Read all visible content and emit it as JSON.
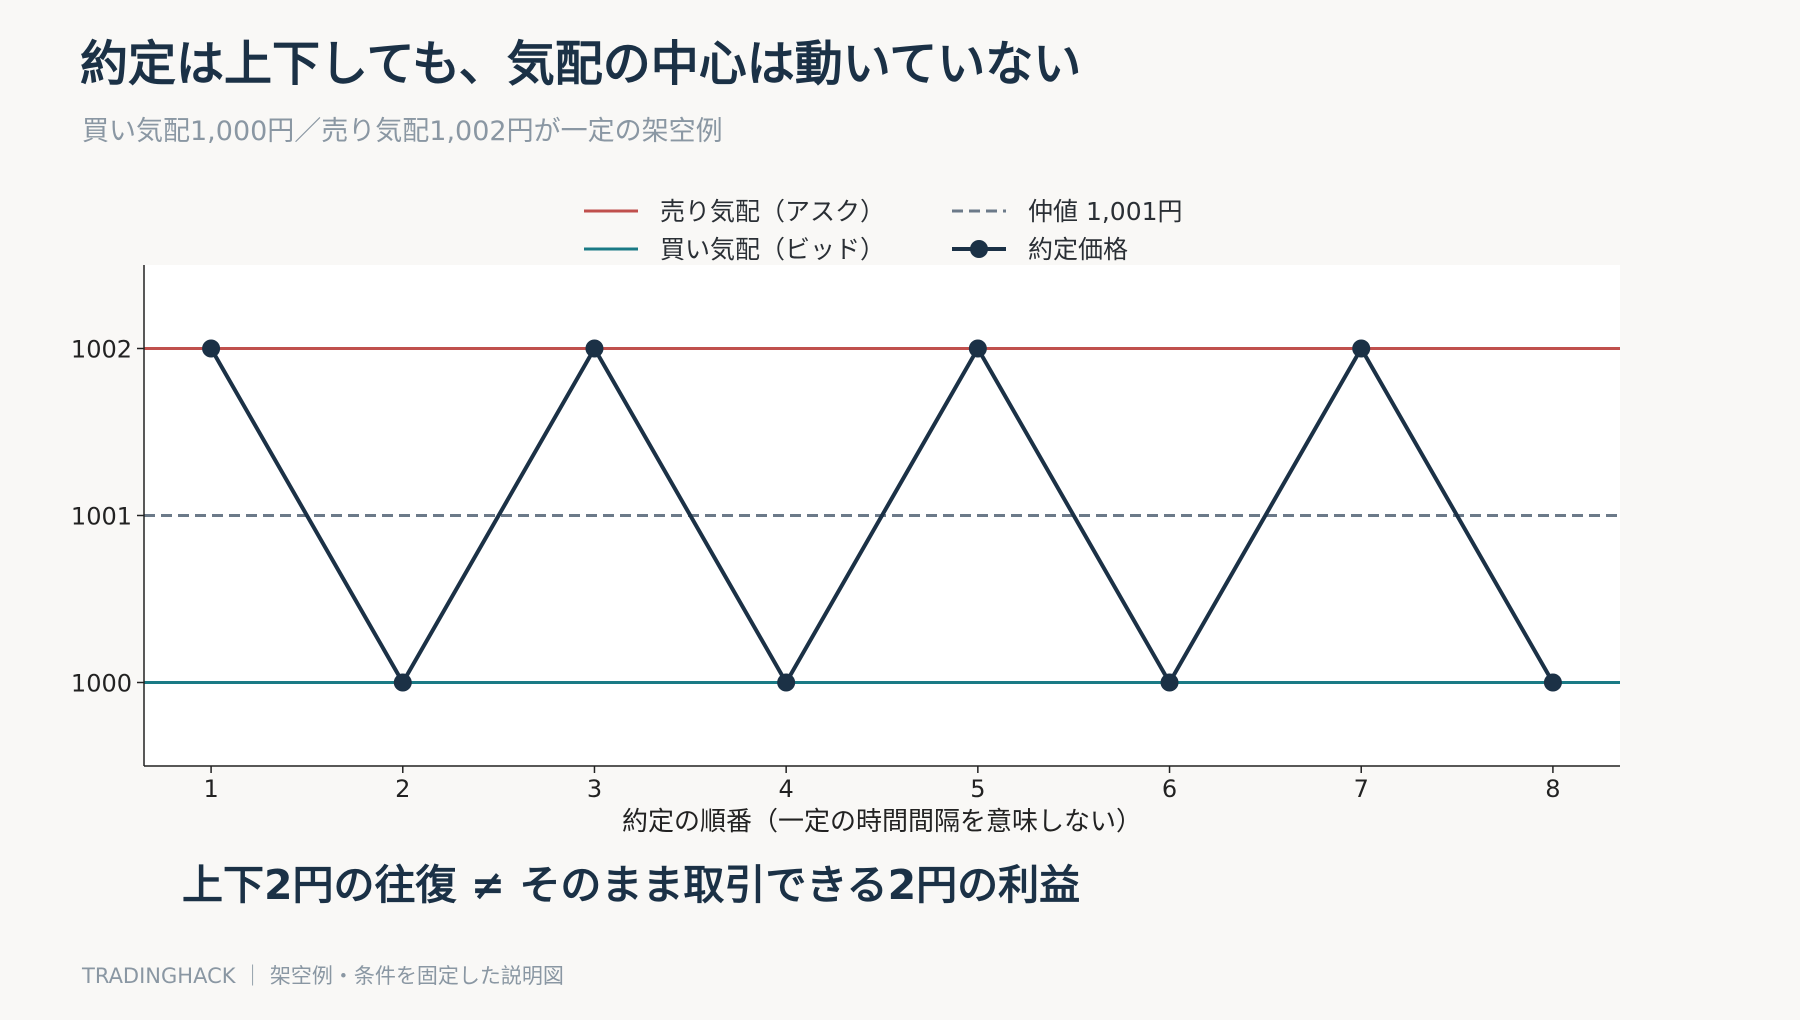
{
  "title": "約定は上下しても、気配の中心は動いていない",
  "subtitle": "買い気配1,000円／売り気配1,002円が一定の架空例",
  "callout": "上下2円の往復 ≠ そのまま取引できる2円の利益",
  "footer": "TRADINGHACK ｜ 架空例・条件を固定した説明図",
  "legend": {
    "ask": "売り気配（アスク）",
    "bid": "買い気配（ビッド）",
    "mid": "仲値 1,001円",
    "trade": "約定価格"
  },
  "colors": {
    "ask": "#c0504d",
    "bid": "#1a7a85",
    "mid": "#6c7a89",
    "trade": "#1b3146"
  },
  "chart_data": {
    "type": "line",
    "xlabel": "約定の順番（一定の時間間隔を意味しない）",
    "ylabel": "",
    "x": [
      1,
      2,
      3,
      4,
      5,
      6,
      7,
      8
    ],
    "xticks": [
      "1",
      "2",
      "3",
      "4",
      "5",
      "6",
      "7",
      "8"
    ],
    "yticks": [
      "1000",
      "1001",
      "1002"
    ],
    "xlim": [
      0.65,
      8.35
    ],
    "ylim": [
      999.5,
      1002.5
    ],
    "grid": false,
    "legend_position": "top-center",
    "series": [
      {
        "name": "売り気配（アスク）",
        "kind": "hline",
        "y": 1002,
        "style": "solid"
      },
      {
        "name": "買い気配（ビッド）",
        "kind": "hline",
        "y": 1000,
        "style": "solid"
      },
      {
        "name": "仲値 1,001円",
        "kind": "hline",
        "y": 1001,
        "style": "dashed"
      },
      {
        "name": "約定価格",
        "kind": "line-markers",
        "values": [
          1002,
          1000,
          1002,
          1000,
          1002,
          1000,
          1002,
          1000
        ]
      }
    ]
  }
}
